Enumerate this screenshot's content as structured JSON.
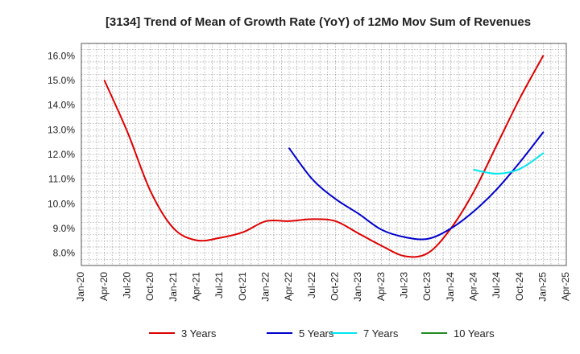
{
  "chart_data": {
    "type": "line",
    "title": "[3134]  Trend of Mean of Growth Rate (YoY) of 12Mo Mov Sum of Revenues",
    "xlabel": "",
    "ylabel": "",
    "ylim": [
      7.5,
      16.5
    ],
    "y_ticks": [
      8.0,
      9.0,
      10.0,
      11.0,
      12.0,
      13.0,
      14.0,
      15.0,
      16.0
    ],
    "y_tick_labels": [
      "8.0%",
      "9.0%",
      "10.0%",
      "11.0%",
      "12.0%",
      "13.0%",
      "14.0%",
      "15.0%",
      "16.0%"
    ],
    "x_ticks": [
      "Jan-20",
      "Apr-20",
      "Jul-20",
      "Oct-20",
      "Jan-21",
      "Apr-21",
      "Jul-21",
      "Oct-21",
      "Jan-22",
      "Apr-22",
      "Jul-22",
      "Oct-22",
      "Jan-23",
      "Apr-23",
      "Jul-23",
      "Oct-23",
      "Jan-24",
      "Apr-24",
      "Jul-24",
      "Oct-24",
      "Jan-25",
      "Apr-25"
    ],
    "grid": true,
    "legend_position": "bottom",
    "series": [
      {
        "name": "3 Years",
        "color": "#dd0000",
        "x": [
          3,
          6,
          9,
          12,
          15,
          18,
          21,
          24,
          27,
          30,
          33,
          36,
          39,
          42,
          45,
          48,
          51,
          54,
          57,
          60
        ],
        "values": [
          15.0,
          12.9,
          10.5,
          9.0,
          8.52,
          8.62,
          8.85,
          9.3,
          9.3,
          9.38,
          9.3,
          8.8,
          8.3,
          7.88,
          8.0,
          9.0,
          10.5,
          12.4,
          14.3,
          16.0
        ]
      },
      {
        "name": "5 Years",
        "color": "#0000cc",
        "x": [
          27,
          30,
          33,
          36,
          39,
          42,
          45,
          48,
          51,
          54,
          57,
          60
        ],
        "values": [
          12.25,
          11.0,
          10.2,
          9.6,
          8.95,
          8.65,
          8.58,
          9.0,
          9.7,
          10.6,
          11.7,
          12.9
        ]
      },
      {
        "name": "7 Years",
        "color": "#00e5ee",
        "x": [
          51,
          54,
          57,
          60
        ],
        "values": [
          11.38,
          11.22,
          11.42,
          12.05
        ]
      },
      {
        "name": "10 Years",
        "color": "#228b22",
        "x": [],
        "values": []
      }
    ]
  }
}
